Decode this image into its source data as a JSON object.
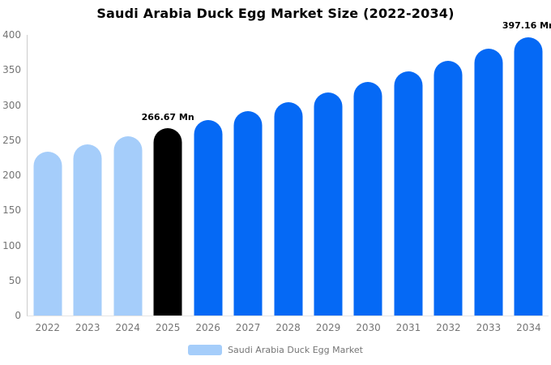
{
  "title": "Saudi Arabia Duck Egg Market Size (2022-2034)",
  "chart_data": {
    "type": "bar",
    "title": "Saudi Arabia Duck Egg Market Size (2022-2034)",
    "categories": [
      "2022",
      "2023",
      "2024",
      "2025",
      "2026",
      "2027",
      "2028",
      "2029",
      "2030",
      "2031",
      "2032",
      "2033",
      "2034"
    ],
    "series": [
      {
        "name": "Saudi Arabia Duck Egg Market",
        "values": [
          233.5,
          244.1,
          255.1,
          266.67,
          278.7,
          291.4,
          304.5,
          318.3,
          332.7,
          347.8,
          363.5,
          380.0,
          397.16
        ]
      }
    ],
    "unit": "Mn",
    "xlabel": "",
    "ylabel": "",
    "ylim": [
      0,
      400
    ],
    "yticks": [
      0,
      50,
      100,
      150,
      200,
      250,
      300,
      350,
      400
    ],
    "grid": false,
    "legend_position": "bottom",
    "bar_colors": [
      "#A5CDFA",
      "#A5CDFA",
      "#A5CDFA",
      "#000000",
      "#0569F5",
      "#0569F5",
      "#0569F5",
      "#0569F5",
      "#0569F5",
      "#0569F5",
      "#0569F5",
      "#0569F5",
      "#0569F5"
    ],
    "data_labels": [
      {
        "category": "2025",
        "text": "266.67 Mn"
      },
      {
        "category": "2034",
        "text": "397.16 Mn"
      }
    ]
  },
  "legend": {
    "label": "Saudi Arabia Duck Egg Market",
    "swatch_color": "#A5CDFA"
  },
  "colors": {
    "axis_line": "#cccccc",
    "baseline": "#e4e4e4",
    "tick_text": "#757575",
    "title_text": "#000000",
    "data_label_text": "#000000",
    "background": "#ffffff"
  }
}
